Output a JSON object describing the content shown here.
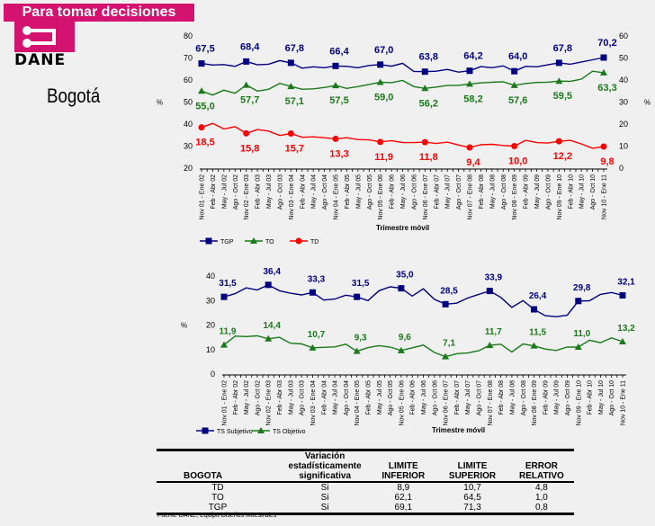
{
  "header": {
    "banner": "Para tomar decisiones",
    "logo_text": "DANE",
    "city": "Bogotá"
  },
  "x_categories": [
    "Nov 01 - Ene 02",
    "Feb - Abr 02",
    "May - Jul 02",
    "Ago - Oct 02",
    "Nov 02 - Ene 03",
    "Feb - Abr 03",
    "May - Jul 03",
    "Ago - Oct 03",
    "Nov 03 - Ene 04",
    "Feb - Abr 04",
    "May - Jul 04",
    "Ago - Oct 04",
    "Nov 04 - Ene 05",
    "Feb - Abr 05",
    "May - Jul 05",
    "Ago - Oct 05",
    "Nov 05 - Ene 06",
    "Feb - Abr 06",
    "May - Jul 06",
    "Ago - Oct 06",
    "Nov 06 - Ene 07",
    "Feb - Abr 07",
    "May - Jul 07",
    "Ago - Oct 07",
    "Nov 07 - Ene 08",
    "Feb - Abr 08",
    "May - Jul 08",
    "Ago - Oct 08",
    "Nov 08 - Ene 09",
    "Feb - Abr 09",
    "May - Jul 09",
    "Ago - Oct 09",
    "Nov 09 - Ene 10",
    "Feb - Abr 10",
    "May - Jul 10",
    "Ago - Oct 10",
    "Nov 10 - Ene 11"
  ],
  "chart_data": [
    {
      "type": "line",
      "title": "",
      "xlabel": "Trimestre móvil",
      "ylabel": "%",
      "y2label": "%",
      "ylim": [
        20,
        80
      ],
      "y2lim": [
        0,
        60
      ],
      "yticks": [
        "80",
        "70",
        "60",
        "50",
        "40",
        "30",
        "20"
      ],
      "y2ticks": [
        "60",
        "50",
        "40",
        "30",
        "20",
        "10",
        "0"
      ],
      "legend": "bottom-left",
      "series": [
        {
          "name": "TGP",
          "axis": "left",
          "color": "#000080",
          "marker": "square",
          "labels": {
            "0": "67,5",
            "4": "68,4",
            "8": "67,8",
            "12": "66,4",
            "16": "67,0",
            "20": "63,8",
            "24": "64,2",
            "28": "64,0",
            "32": "67,8",
            "36": "70,2"
          },
          "values": [
            67.5,
            66.8,
            67.0,
            66.2,
            68.4,
            66.9,
            67.2,
            68.8,
            67.8,
            65.4,
            66.0,
            65.6,
            66.4,
            66.2,
            65.6,
            66.6,
            67.0,
            66.3,
            67.6,
            63.9,
            63.8,
            64.0,
            64.8,
            63.6,
            64.2,
            66.1,
            65.6,
            66.4,
            64.0,
            66.2,
            66.0,
            66.9,
            67.8,
            67.2,
            68.2,
            69.2,
            70.2
          ]
        },
        {
          "name": "TO",
          "axis": "left",
          "color": "#1a7a1a",
          "marker": "triangle",
          "labels": {
            "0": "55,0",
            "4": "57,7",
            "8": "57,1",
            "12": "57,5",
            "16": "59,0",
            "20": "56,2",
            "24": "58,2",
            "28": "57,6",
            "32": "59,5",
            "36": "63,3"
          },
          "values": [
            55.0,
            53.2,
            55.4,
            54.0,
            57.7,
            55.0,
            55.8,
            58.5,
            57.1,
            55.8,
            56.0,
            56.6,
            57.5,
            56.2,
            57.0,
            58.0,
            59.0,
            58.8,
            59.8,
            57.0,
            56.2,
            56.8,
            57.5,
            57.6,
            58.2,
            58.7,
            59.0,
            59.2,
            57.6,
            58.4,
            58.9,
            59.0,
            59.5,
            59.4,
            60.4,
            64.0,
            63.3
          ]
        },
        {
          "name": "TD",
          "axis": "right",
          "color": "#ff0000",
          "marker": "diamond",
          "labels": {
            "0": "18,5",
            "4": "15,8",
            "8": "15,7",
            "12": "13,3",
            "16": "11,9",
            "20": "11,8",
            "24": "9,4",
            "28": "10,0",
            "32": "12,2",
            "36": "9,8"
          },
          "values": [
            18.5,
            20.3,
            17.8,
            18.8,
            15.8,
            17.5,
            16.8,
            14.8,
            15.7,
            14.0,
            14.2,
            13.8,
            13.3,
            13.8,
            13.0,
            12.8,
            11.9,
            12.5,
            11.6,
            11.6,
            11.8,
            11.2,
            11.8,
            10.5,
            9.4,
            10.6,
            10.8,
            10.3,
            10.0,
            12.6,
            11.6,
            11.4,
            12.2,
            12.6,
            11.0,
            9.0,
            9.8
          ]
        }
      ]
    },
    {
      "type": "line",
      "title": "",
      "xlabel": "Trimestre móvil",
      "ylabel": "%",
      "ylim": [
        0,
        40
      ],
      "yticks": [
        "40",
        "30",
        "20",
        "10",
        "0"
      ],
      "legend": "bottom-left",
      "series": [
        {
          "name": "TS Subjetivo",
          "color": "#000080",
          "marker": "square",
          "labels": {
            "0": "31,5",
            "4": "36,4",
            "8": "33,3",
            "12": "31,5",
            "16": "35,0",
            "20": "28,5",
            "24": "33,9",
            "28": "26,4",
            "32": "29,8",
            "36": "32,1"
          },
          "values": [
            31.5,
            32.8,
            35.2,
            34.3,
            36.4,
            34.0,
            33.0,
            32.3,
            33.3,
            30.2,
            30.6,
            32.2,
            31.5,
            30.0,
            34.0,
            35.6,
            35.0,
            31.8,
            34.8,
            30.5,
            28.5,
            28.9,
            31.0,
            32.5,
            33.9,
            31.3,
            27.2,
            30.0,
            26.4,
            23.8,
            23.4,
            24.0,
            29.8,
            29.9,
            32.5,
            33.3,
            32.1
          ]
        },
        {
          "name": "TS Objetivo",
          "color": "#1a7a1a",
          "marker": "triangle",
          "labels": {
            "0": "11,9",
            "4": "14,4",
            "8": "10,7",
            "12": "9,3",
            "16": "9,6",
            "20": "7,1",
            "24": "11,7",
            "28": "11,5",
            "32": "11,0",
            "36": "13,2"
          },
          "values": [
            11.9,
            15.5,
            15.3,
            15.6,
            14.4,
            15.0,
            12.6,
            12.3,
            10.7,
            10.9,
            11.1,
            12.2,
            9.3,
            10.8,
            11.6,
            11.0,
            9.6,
            10.7,
            11.8,
            8.8,
            7.1,
            8.3,
            8.6,
            9.5,
            11.7,
            12.2,
            9.0,
            12.3,
            11.5,
            10.2,
            9.6,
            11.0,
            11.0,
            13.8,
            12.8,
            14.8,
            13.2
          ]
        }
      ]
    }
  ],
  "table": {
    "headers": [
      "BOGOTA",
      "Variación estadísticamente significativa",
      "LIMITE INFERIOR",
      "LIMITE SUPERIOR",
      "ERROR RELATIVO"
    ],
    "rows": [
      [
        "TD",
        "Si",
        "8,9",
        "10,7",
        "4,8"
      ],
      [
        "TO",
        "Si",
        "62,1",
        "64,5",
        "1,0"
      ],
      [
        "TGP",
        "Si",
        "69,1",
        "71,3",
        "0,8"
      ]
    ]
  },
  "source": "Fuente DANE, Equipo Diseños Muestrales"
}
